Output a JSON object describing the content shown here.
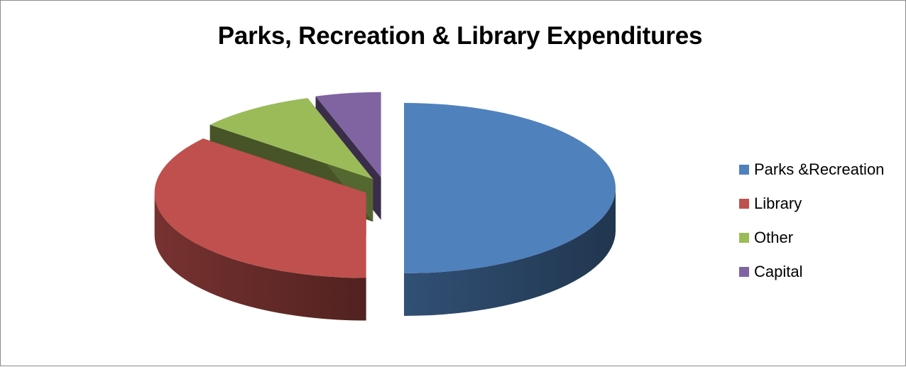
{
  "chart_data": {
    "type": "pie",
    "style": "3d-exploded",
    "title": "Parks, Recreation & Library Expenditures",
    "legend_position": "right",
    "series": [
      {
        "name": "Parks &Recreation",
        "value": 50.0,
        "color": "#4F81BD"
      },
      {
        "name": "Library",
        "value": 36.0,
        "color": "#C0504D"
      },
      {
        "name": "Other",
        "value": 9.0,
        "color": "#9BBB59"
      },
      {
        "name": "Capital",
        "value": 5.0,
        "color": "#8064A2"
      }
    ]
  }
}
